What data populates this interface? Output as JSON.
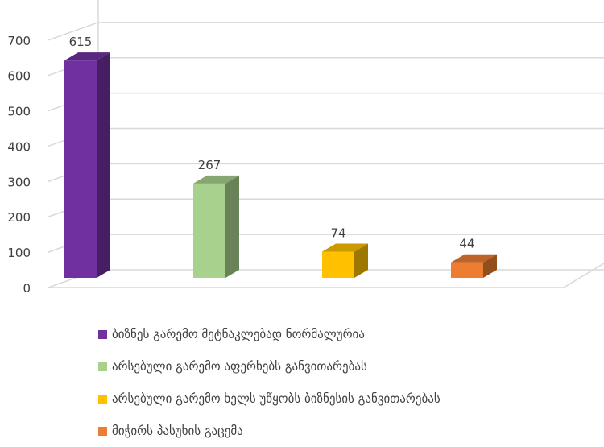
{
  "chart_data": {
    "type": "bar",
    "style": "3d-column",
    "categories": [
      "ბიზნეს გარემო მეტნაკლებად ნორმალურია",
      "არსებული გარემო აფერხებს განვითარებას",
      "არსებული გარემო ხელს უწყობს ბიზნესის განვითარებას",
      "მიჭირს პასუხის გაცემა"
    ],
    "values": [
      615,
      267,
      74,
      44
    ],
    "colors": [
      "#7030A0",
      "#A9D18E",
      "#FFC000",
      "#ED7D31"
    ],
    "ylim": [
      0,
      700
    ],
    "yticks": [
      "0",
      "100",
      "200",
      "300",
      "400",
      "500",
      "600",
      "700"
    ],
    "grid": true,
    "data_labels": true,
    "legend_position": "bottom-left"
  }
}
